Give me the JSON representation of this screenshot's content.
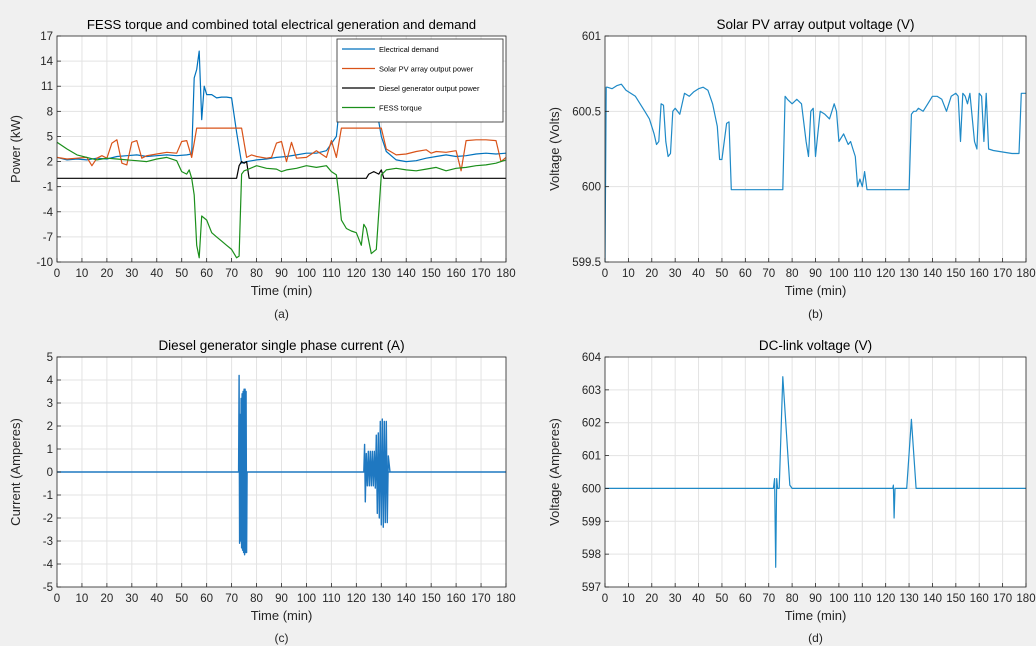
{
  "chart_data": [
    {
      "type": "line",
      "title": "FESS torque and combined total electrical generation and demand",
      "xlabel": "Time (min)",
      "ylabel": "Power (kW)",
      "xlim": [
        0,
        180
      ],
      "ylim": [
        -10,
        17
      ],
      "xticks": [
        0,
        10,
        20,
        30,
        40,
        50,
        60,
        70,
        80,
        90,
        100,
        110,
        120,
        130,
        140,
        150,
        160,
        170,
        180
      ],
      "yticks": [
        -10,
        -7,
        -4,
        -1,
        2,
        5,
        8,
        11,
        14,
        17
      ],
      "caption": "(a)",
      "grid": true,
      "legend": "top-right",
      "series": [
        {
          "name": "Electrical demand",
          "color": "#0072bd",
          "x": [
            0,
            4,
            8,
            12,
            16,
            20,
            24,
            28,
            32,
            36,
            40,
            44,
            48,
            52,
            54,
            55,
            56,
            57,
            58,
            59,
            60,
            62,
            64,
            66,
            68,
            70,
            72,
            74,
            76,
            80,
            84,
            88,
            92,
            96,
            100,
            104,
            108,
            112,
            113,
            114,
            115,
            116,
            117,
            118,
            120,
            122,
            124,
            126,
            128,
            130,
            132,
            136,
            140,
            144,
            148,
            152,
            156,
            160,
            164,
            168,
            172,
            176,
            180
          ],
          "y": [
            2.5,
            2.2,
            2.3,
            2.2,
            2.4,
            2.3,
            2.6,
            2.7,
            2.8,
            2.6,
            2.7,
            2.8,
            2.7,
            2.8,
            2.9,
            12,
            13,
            15.2,
            7,
            11,
            10,
            10,
            9.6,
            9.7,
            9.7,
            9.6,
            5.5,
            1.8,
            2.0,
            2.2,
            2.3,
            2.5,
            2.6,
            2.8,
            3.0,
            3.0,
            3.3,
            5.0,
            8.0,
            9.4,
            8.8,
            7.5,
            9.0,
            8.8,
            8.5,
            8.8,
            7.8,
            8.5,
            8.5,
            5.0,
            3.2,
            2.2,
            2.0,
            2.1,
            2.4,
            2.6,
            2.8,
            2.6,
            2.7,
            2.9,
            3.0,
            2.9,
            3.0
          ]
        },
        {
          "name": "Solar PV array output power",
          "color": "#d95319",
          "x": [
            0,
            4,
            8,
            12,
            14,
            16,
            18,
            20,
            22,
            24,
            26,
            28,
            30,
            32,
            34,
            36,
            40,
            44,
            48,
            50,
            52,
            54,
            56,
            60,
            64,
            68,
            72,
            74,
            76,
            78,
            80,
            84,
            86,
            88,
            90,
            92,
            94,
            96,
            100,
            104,
            108,
            110,
            112,
            114,
            118,
            122,
            126,
            130,
            132,
            136,
            140,
            144,
            148,
            150,
            152,
            156,
            160,
            162,
            164,
            168,
            172,
            176,
            178,
            180
          ],
          "y": [
            2.5,
            2.3,
            2.4,
            2.5,
            1.5,
            2.4,
            2.7,
            2.4,
            4.2,
            4.6,
            1.8,
            1.6,
            4.3,
            4.5,
            2.4,
            2.7,
            2.9,
            3.1,
            3.0,
            4.4,
            4.5,
            2.5,
            6.0,
            6.0,
            6.0,
            6.0,
            6.0,
            6.0,
            2.5,
            2.8,
            2.6,
            2.4,
            2.5,
            4.2,
            4.4,
            2.0,
            4.3,
            2.4,
            2.5,
            3.3,
            2.5,
            4.5,
            2.5,
            6.0,
            6.0,
            6.0,
            6.0,
            6.0,
            3.5,
            2.8,
            2.9,
            3.2,
            3.4,
            3.0,
            3.2,
            3.1,
            3.3,
            0.9,
            4.5,
            4.6,
            4.6,
            4.5,
            2.0,
            2.5
          ]
        },
        {
          "name": "Diesel generator output power",
          "color": "#000000",
          "x": [
            0,
            72,
            73,
            74,
            75,
            76,
            77,
            124,
            125,
            127,
            129,
            130,
            131,
            180
          ],
          "y": [
            0,
            0,
            1.5,
            2.0,
            1.8,
            2.0,
            0,
            0,
            0.5,
            0.8,
            0.5,
            1.0,
            0,
            0
          ]
        },
        {
          "name": "FESS torque",
          "color": "#1b8f1b",
          "x": [
            0,
            4,
            8,
            12,
            16,
            20,
            24,
            28,
            32,
            36,
            40,
            44,
            48,
            50,
            52,
            53,
            54,
            55,
            56,
            57,
            58,
            60,
            62,
            64,
            66,
            68,
            70,
            72,
            73,
            74,
            75,
            76,
            80,
            84,
            88,
            90,
            92,
            96,
            100,
            104,
            108,
            110,
            112,
            113,
            114,
            116,
            118,
            120,
            122,
            123,
            124,
            125,
            126,
            128,
            130,
            132,
            136,
            140,
            144,
            148,
            152,
            156,
            160,
            164,
            168,
            172,
            176,
            180
          ],
          "y": [
            4.3,
            3.5,
            2.8,
            2.5,
            2.2,
            2.4,
            2.3,
            2.2,
            2.1,
            2.0,
            2.3,
            2.5,
            2.1,
            0.8,
            0.5,
            1.0,
            0,
            -2,
            -8,
            -9.5,
            -4.5,
            -5,
            -6.5,
            -7,
            -7.5,
            -8,
            -8.5,
            -9.5,
            -9.3,
            0.5,
            0.9,
            1.0,
            1.5,
            1.2,
            1.1,
            0.8,
            1.0,
            1.2,
            1.5,
            1.3,
            1.5,
            0.8,
            0.4,
            -2,
            -5,
            -6,
            -6.3,
            -6.5,
            -8,
            -5.5,
            -6,
            -7.5,
            -9,
            -8.5,
            0.4,
            1.0,
            1.2,
            1.0,
            0.9,
            1.1,
            1.3,
            0.9,
            1.2,
            1.3,
            1.5,
            1.6,
            1.8,
            2.2
          ]
        }
      ]
    },
    {
      "type": "line",
      "title": "Solar PV array output voltage (V)",
      "xlabel": "Time (min)",
      "ylabel": "Voltage (Volts)",
      "xlim": [
        0,
        180
      ],
      "ylim": [
        599.5,
        601
      ],
      "xticks": [
        0,
        10,
        20,
        30,
        40,
        50,
        60,
        70,
        80,
        90,
        100,
        110,
        120,
        130,
        140,
        150,
        160,
        170,
        180
      ],
      "yticks": [
        599.5,
        600,
        600.5,
        601
      ],
      "caption": "(b)",
      "grid": true,
      "series": [
        {
          "color": "#1f8ac7",
          "x": [
            0,
            0.5,
            1,
            3,
            5,
            7,
            9,
            11,
            13,
            15,
            17,
            19,
            21,
            22,
            23,
            24,
            25,
            26,
            27,
            28,
            29,
            30,
            32,
            34,
            36,
            38,
            40,
            42,
            44,
            46,
            48,
            49,
            50,
            52,
            53,
            54,
            56,
            60,
            64,
            68,
            72,
            74,
            76,
            77,
            78,
            80,
            82,
            84,
            86,
            87,
            88,
            89,
            90,
            91,
            92,
            94,
            96,
            98,
            99,
            100,
            102,
            104,
            105,
            106,
            107,
            108,
            109,
            110,
            111,
            112,
            114,
            118,
            122,
            126,
            130,
            131,
            132,
            133,
            134,
            136,
            138,
            140,
            142,
            144,
            146,
            148,
            150,
            151,
            152,
            153,
            154,
            155,
            156,
            158,
            159,
            160,
            161,
            162,
            163,
            164,
            166,
            170,
            174,
            177,
            178,
            180
          ],
          "y": [
            599.5,
            600.66,
            600.66,
            600.65,
            600.67,
            600.68,
            600.64,
            600.62,
            600.6,
            600.55,
            600.5,
            600.45,
            600.35,
            600.28,
            600.3,
            600.55,
            600.54,
            600.3,
            600.2,
            600.22,
            600.5,
            600.52,
            600.48,
            600.62,
            600.6,
            600.63,
            600.65,
            600.66,
            600.64,
            600.55,
            600.4,
            600.18,
            600.18,
            600.42,
            600.43,
            599.98,
            599.98,
            599.98,
            599.98,
            599.98,
            599.98,
            599.98,
            599.98,
            600.6,
            600.58,
            600.55,
            600.58,
            600.55,
            600.3,
            600.2,
            600.5,
            600.52,
            600.2,
            600.35,
            600.5,
            600.48,
            600.45,
            600.55,
            600.5,
            600.3,
            600.35,
            600.28,
            600.3,
            600.25,
            600.2,
            600.0,
            600.05,
            600.0,
            600.1,
            599.98,
            599.98,
            599.98,
            599.98,
            599.98,
            599.98,
            600.48,
            600.5,
            600.5,
            600.52,
            600.5,
            600.55,
            600.6,
            600.6,
            600.58,
            600.5,
            600.6,
            600.62,
            600.6,
            600.3,
            600.62,
            600.6,
            600.55,
            600.62,
            600.3,
            600.25,
            600.62,
            600.6,
            600.3,
            600.62,
            600.25,
            600.24,
            600.23,
            600.22,
            600.22,
            600.62,
            600.62
          ]
        }
      ]
    },
    {
      "type": "line",
      "title": "Diesel generator single phase current (A)",
      "xlabel": "Time (min)",
      "ylabel": "Current (Amperes)",
      "xlim": [
        0,
        180
      ],
      "ylim": [
        -5,
        5
      ],
      "xticks": [
        0,
        10,
        20,
        30,
        40,
        50,
        60,
        70,
        80,
        90,
        100,
        110,
        120,
        130,
        140,
        150,
        160,
        170,
        180
      ],
      "yticks": [
        -5,
        -4,
        -3,
        -2,
        -1,
        0,
        1,
        2,
        3,
        4,
        5
      ],
      "caption": "(c)",
      "grid": true,
      "series": [
        {
          "color": "#1f78c1",
          "x": [
            0,
            72.8,
            73,
            73.2,
            73.4,
            73.6,
            73.8,
            74,
            74.2,
            74.4,
            74.6,
            74.8,
            75,
            75.2,
            75.4,
            75.6,
            75.8,
            76,
            76.2,
            180
          ],
          "y": [
            0,
            0,
            4.2,
            -3.1,
            2.5,
            -3.0,
            3.2,
            -3.3,
            3.4,
            -3.4,
            3.5,
            -3.5,
            3.6,
            -3.6,
            3.6,
            -3.5,
            3.5,
            -3.5,
            0,
            0
          ]
        },
        {
          "color": "#1f78c1",
          "x": [
            123,
            123.3,
            123.6,
            124,
            124.4,
            124.8,
            125.2,
            125.6,
            126,
            126.4,
            126.8,
            127.2,
            127.6,
            128,
            128.4,
            128.8,
            129.2,
            129.6,
            130,
            130.4,
            130.8,
            131.2,
            131.6,
            132,
            132.4,
            132.8,
            133.5
          ],
          "y": [
            0,
            1.2,
            -1.3,
            0.8,
            -0.6,
            0.9,
            -0.6,
            0.9,
            -0.6,
            0.9,
            -0.6,
            0.9,
            -0.7,
            1.6,
            -1.8,
            1.7,
            -2.0,
            2.2,
            -2.3,
            2.3,
            -2.4,
            2.2,
            -2.2,
            2.2,
            -2.2,
            0.7,
            0
          ]
        }
      ]
    },
    {
      "type": "line",
      "title": "DC-link voltage (V)",
      "xlabel": "Time (min)",
      "ylabel": "Voltage (Amperes)",
      "xlim": [
        0,
        180
      ],
      "ylim": [
        597,
        604
      ],
      "xticks": [
        0,
        10,
        20,
        30,
        40,
        50,
        60,
        70,
        80,
        90,
        100,
        110,
        120,
        130,
        140,
        150,
        160,
        170,
        180
      ],
      "yticks": [
        597,
        598,
        599,
        600,
        601,
        602,
        603,
        604
      ],
      "caption": "(d)",
      "grid": true,
      "series": [
        {
          "color": "#1f8ac7",
          "x": [
            0,
            72,
            72.5,
            73,
            73.4,
            73.8,
            74.5,
            76,
            79,
            80,
            123,
            123.3,
            123.6,
            124,
            126,
            129,
            131,
            133,
            180
          ],
          "y": [
            600,
            600,
            600.3,
            597.6,
            600.3,
            600,
            600,
            603.4,
            600.1,
            600,
            600,
            600.1,
            599.1,
            600,
            600,
            600,
            602.1,
            600,
            600
          ]
        }
      ]
    }
  ]
}
